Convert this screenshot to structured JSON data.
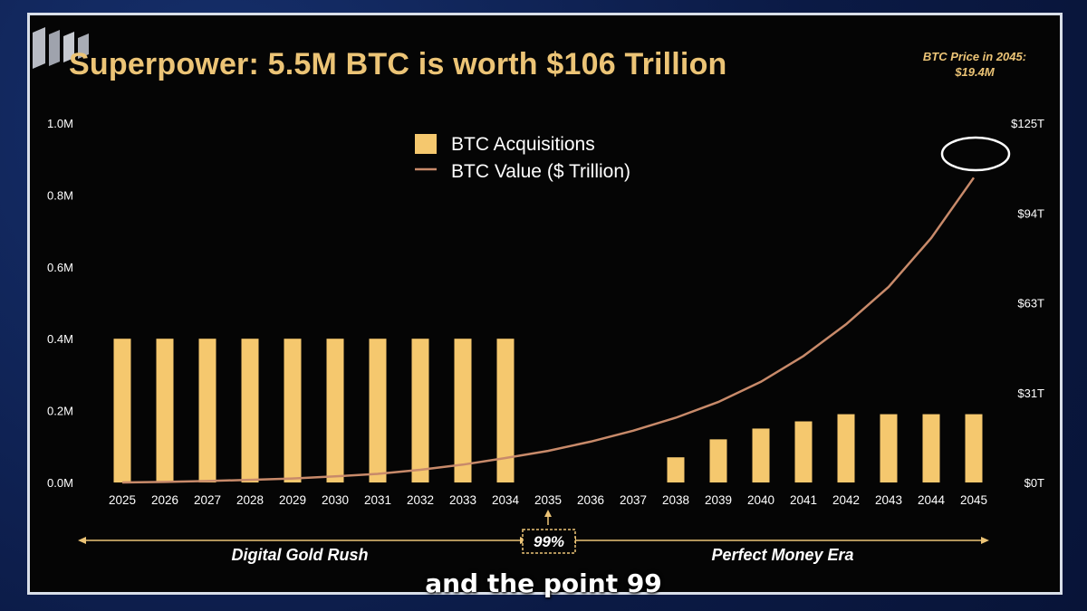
{
  "title": "Superpower: 5.5M BTC is worth $106 Trillion",
  "price_note": {
    "line1": "BTC Price in 2045:",
    "line2": "$19.4M"
  },
  "caption": "and the point 99",
  "colors": {
    "bar": "#f5c86e",
    "line": "#c88a6a",
    "text": "#ecc476",
    "axis": "#ffffff",
    "marker": "#ffffff"
  },
  "chart_data": {
    "type": "bar",
    "title": "Superpower: 5.5M BTC is worth $106 Trillion",
    "categories": [
      "2025",
      "2026",
      "2027",
      "2028",
      "2029",
      "2030",
      "2031",
      "2032",
      "2033",
      "2034",
      "2035",
      "2036",
      "2037",
      "2038",
      "2039",
      "2040",
      "2041",
      "2042",
      "2043",
      "2044",
      "2045"
    ],
    "series": [
      {
        "name": "BTC Acquisitions",
        "type": "bar",
        "axis": "left",
        "values": [
          400000,
          400000,
          400000,
          400000,
          400000,
          400000,
          400000,
          400000,
          400000,
          400000,
          0,
          0,
          0,
          70000,
          120000,
          150000,
          170000,
          190000,
          190000,
          190000,
          190000
        ]
      },
      {
        "name": "BTC Value ($ Trillion)",
        "type": "line",
        "axis": "right",
        "values": [
          0,
          0.2,
          0.5,
          0.9,
          1.4,
          2.1,
          3.0,
          4.4,
          6.2,
          8.5,
          11.0,
          14.2,
          18.0,
          22.5,
          28.0,
          35.0,
          44.0,
          55.0,
          68.0,
          85.0,
          106.0
        ]
      }
    ],
    "y_left": {
      "ticks": [
        "0.0M",
        "0.2M",
        "0.4M",
        "0.6M",
        "0.8M",
        "1.0M"
      ],
      "range": [
        0,
        1000000
      ]
    },
    "y_right": {
      "ticks": [
        "$0T",
        "$31T",
        "$63T",
        "$94T",
        "$125T"
      ],
      "range": [
        0,
        125
      ]
    },
    "legend": {
      "position": "top-center",
      "items": [
        "BTC Acquisitions",
        "BTC Value ($ Trillion)"
      ]
    },
    "grid": false,
    "annotations": {
      "left_era": "Digital Gold Rush",
      "right_era": "Perfect Money Era",
      "pivot_label": "99%",
      "pivot_category": "2035",
      "circled_category": "2045"
    }
  }
}
